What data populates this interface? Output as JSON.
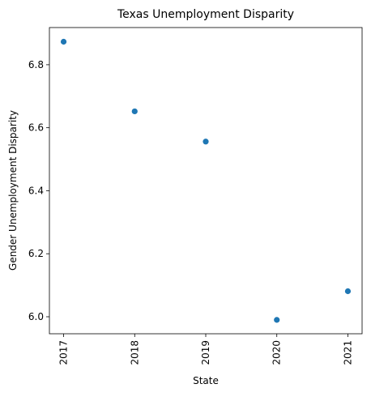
{
  "chart_data": {
    "type": "scatter",
    "title": "Texas Unemployment Disparity",
    "xlabel": "State",
    "ylabel": "Gender Unemployment Disparity",
    "x": [
      "2017",
      "2018",
      "2019",
      "2020",
      "2021"
    ],
    "y": [
      6.873,
      6.652,
      6.556,
      5.99,
      6.081
    ],
    "yticks": [
      "6.0",
      "6.2",
      "6.4",
      "6.6",
      "6.8"
    ],
    "ylim": [
      5.946,
      6.918
    ],
    "grid": false,
    "legend": "none",
    "marker_color": "#1f77b4"
  }
}
